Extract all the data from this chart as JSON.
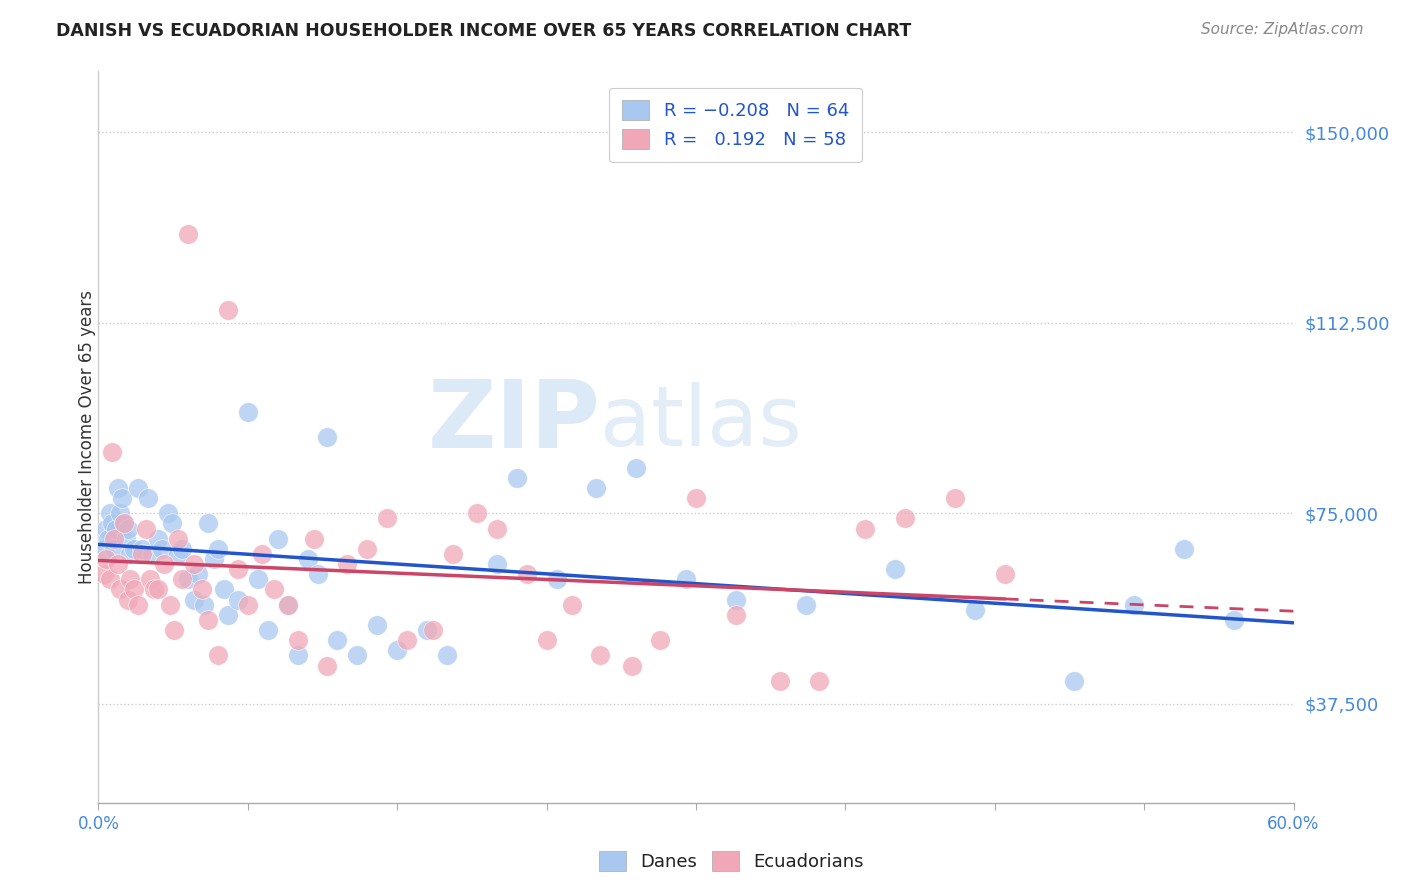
{
  "title": "DANISH VS ECUADORIAN HOUSEHOLDER INCOME OVER 65 YEARS CORRELATION CHART",
  "source": "Source: ZipAtlas.com",
  "ylabel": "Householder Income Over 65 years",
  "xlim": [
    0.0,
    0.6
  ],
  "ylim": [
    18000,
    162000
  ],
  "yticks": [
    37500,
    75000,
    112500,
    150000
  ],
  "ytick_labels": [
    "$37,500",
    "$75,000",
    "$112,500",
    "$150,000"
  ],
  "xtick_positions": [
    0.0,
    0.075,
    0.15,
    0.225,
    0.3,
    0.375,
    0.45,
    0.525,
    0.6
  ],
  "dane_color": "#a8c8f0",
  "ecuadorian_color": "#f0a8b8",
  "dane_line_color": "#2255cc",
  "ecuadorian_line_color": "#cc4466",
  "watermark": "ZIPatlas",
  "danes_x": [
    0.003,
    0.004,
    0.005,
    0.006,
    0.007,
    0.008,
    0.009,
    0.01,
    0.011,
    0.012,
    0.013,
    0.014,
    0.015,
    0.016,
    0.018,
    0.02,
    0.022,
    0.025,
    0.027,
    0.03,
    0.032,
    0.035,
    0.037,
    0.04,
    0.042,
    0.045,
    0.048,
    0.05,
    0.053,
    0.055,
    0.058,
    0.06,
    0.063,
    0.065,
    0.07,
    0.075,
    0.08,
    0.085,
    0.09,
    0.095,
    0.1,
    0.105,
    0.11,
    0.115,
    0.12,
    0.13,
    0.14,
    0.15,
    0.165,
    0.175,
    0.2,
    0.21,
    0.23,
    0.25,
    0.27,
    0.295,
    0.32,
    0.355,
    0.4,
    0.44,
    0.49,
    0.52,
    0.545,
    0.57
  ],
  "danes_y": [
    68000,
    72000,
    70000,
    75000,
    73000,
    68000,
    72000,
    80000,
    75000,
    78000,
    73000,
    70000,
    72000,
    67000,
    68000,
    80000,
    68000,
    78000,
    67000,
    70000,
    68000,
    75000,
    73000,
    67000,
    68000,
    62000,
    58000,
    63000,
    57000,
    73000,
    66000,
    68000,
    60000,
    55000,
    58000,
    95000,
    62000,
    52000,
    70000,
    57000,
    47000,
    66000,
    63000,
    90000,
    50000,
    47000,
    53000,
    48000,
    52000,
    47000,
    65000,
    82000,
    62000,
    80000,
    84000,
    62000,
    58000,
    57000,
    64000,
    56000,
    42000,
    57000,
    68000,
    54000
  ],
  "ecuadorians_x": [
    0.003,
    0.004,
    0.006,
    0.007,
    0.008,
    0.01,
    0.011,
    0.013,
    0.015,
    0.016,
    0.018,
    0.02,
    0.022,
    0.024,
    0.026,
    0.028,
    0.03,
    0.033,
    0.036,
    0.038,
    0.04,
    0.042,
    0.045,
    0.048,
    0.052,
    0.055,
    0.06,
    0.065,
    0.07,
    0.075,
    0.082,
    0.088,
    0.095,
    0.1,
    0.108,
    0.115,
    0.125,
    0.135,
    0.145,
    0.155,
    0.168,
    0.178,
    0.19,
    0.2,
    0.215,
    0.225,
    0.238,
    0.252,
    0.268,
    0.282,
    0.3,
    0.32,
    0.342,
    0.362,
    0.385,
    0.405,
    0.43,
    0.455
  ],
  "ecuadorians_y": [
    63000,
    66000,
    62000,
    87000,
    70000,
    65000,
    60000,
    73000,
    58000,
    62000,
    60000,
    57000,
    67000,
    72000,
    62000,
    60000,
    60000,
    65000,
    57000,
    52000,
    70000,
    62000,
    130000,
    65000,
    60000,
    54000,
    47000,
    115000,
    64000,
    57000,
    67000,
    60000,
    57000,
    50000,
    70000,
    45000,
    65000,
    68000,
    74000,
    50000,
    52000,
    67000,
    75000,
    72000,
    63000,
    50000,
    57000,
    47000,
    45000,
    50000,
    78000,
    55000,
    42000,
    42000,
    72000,
    74000,
    78000,
    63000
  ]
}
